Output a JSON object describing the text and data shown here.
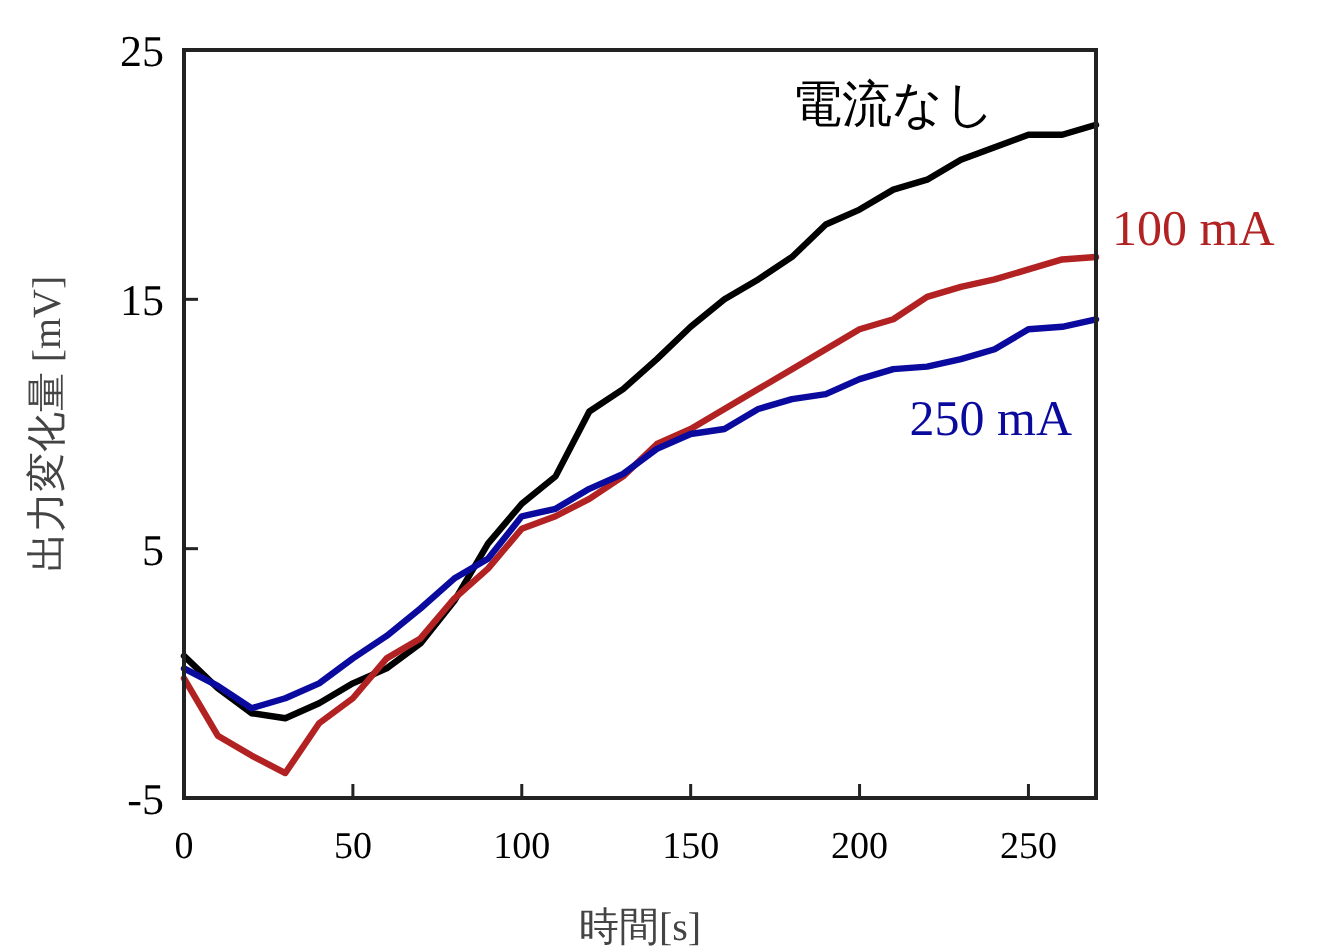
{
  "chart_data": {
    "type": "line",
    "xlabel": "時間[s]",
    "ylabel": "出力変化量 [mV]",
    "xlim": [
      0,
      270
    ],
    "ylim": [
      -5,
      25
    ],
    "xticks": [
      0,
      50,
      100,
      150,
      200,
      250
    ],
    "yticks": [
      -5,
      5,
      15,
      25
    ],
    "grid": false,
    "marker": "none",
    "line_style": "solid",
    "x": [
      0,
      10,
      20,
      30,
      40,
      50,
      60,
      70,
      80,
      90,
      100,
      110,
      120,
      130,
      140,
      150,
      160,
      170,
      180,
      190,
      200,
      210,
      220,
      230,
      240,
      250,
      260,
      270
    ],
    "series": [
      {
        "name": "電流なし",
        "color": "#000000",
        "values": [
          0.7,
          -0.6,
          -1.6,
          -1.8,
          -1.2,
          -0.4,
          0.2,
          1.2,
          2.9,
          5.2,
          6.8,
          7.9,
          10.5,
          11.4,
          12.6,
          13.9,
          15.0,
          15.8,
          16.7,
          18.0,
          18.6,
          19.4,
          19.8,
          20.6,
          21.1,
          21.6,
          21.6,
          22.0
        ]
      },
      {
        "name": "100 mA",
        "color": "#b22222",
        "values": [
          -0.2,
          -2.5,
          -3.3,
          -4.0,
          -2.0,
          -1.0,
          0.6,
          1.4,
          3.0,
          4.2,
          5.8,
          6.3,
          7.0,
          7.9,
          9.2,
          9.8,
          10.6,
          11.4,
          12.2,
          13.0,
          13.8,
          14.2,
          15.1,
          15.5,
          15.8,
          16.2,
          16.6,
          16.7
        ]
      },
      {
        "name": "250 mA",
        "color": "#0a0a9e",
        "values": [
          0.2,
          -0.5,
          -1.4,
          -1.0,
          -0.4,
          0.6,
          1.5,
          2.6,
          3.8,
          4.6,
          6.3,
          6.6,
          7.4,
          8.0,
          9.0,
          9.6,
          9.8,
          10.6,
          11.0,
          11.2,
          11.8,
          12.2,
          12.3,
          12.6,
          13.0,
          13.8,
          13.9,
          14.2
        ]
      }
    ]
  }
}
